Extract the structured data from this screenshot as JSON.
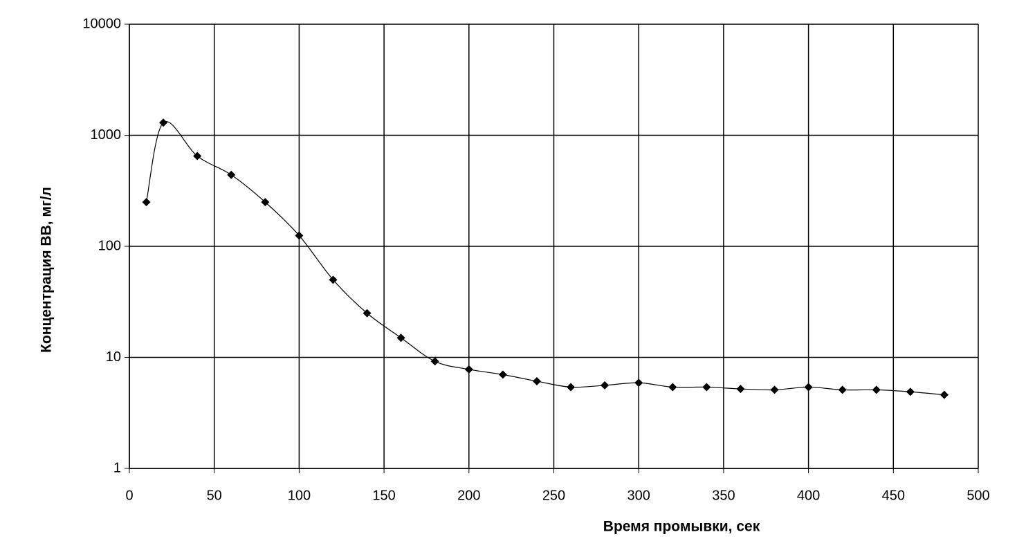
{
  "chart_data": {
    "type": "line",
    "xlabel": "Время промывки, сек",
    "ylabel": "Концентрация ВВ,  мг/л",
    "x": [
      10,
      20,
      40,
      60,
      80,
      100,
      120,
      140,
      160,
      180,
      200,
      220,
      240,
      260,
      280,
      300,
      320,
      340,
      360,
      380,
      400,
      420,
      440,
      460,
      480
    ],
    "series": [
      {
        "color": "#000000",
        "values": [
          250,
          1300,
          650,
          440,
          250,
          125,
          50,
          25,
          15,
          9.2,
          7.8,
          7.0,
          6.1,
          5.4,
          5.6,
          5.9,
          5.4,
          5.4,
          5.2,
          5.1,
          5.4,
          5.1,
          5.1,
          4.9,
          4.6
        ]
      }
    ],
    "xlim": [
      0,
      500
    ],
    "xticks": [
      0,
      50,
      100,
      150,
      200,
      250,
      300,
      350,
      400,
      450,
      500
    ],
    "ylim": [
      1,
      10000
    ],
    "yticks": [
      1,
      10,
      100,
      1000,
      10000
    ],
    "ylog": true,
    "grid": true
  }
}
